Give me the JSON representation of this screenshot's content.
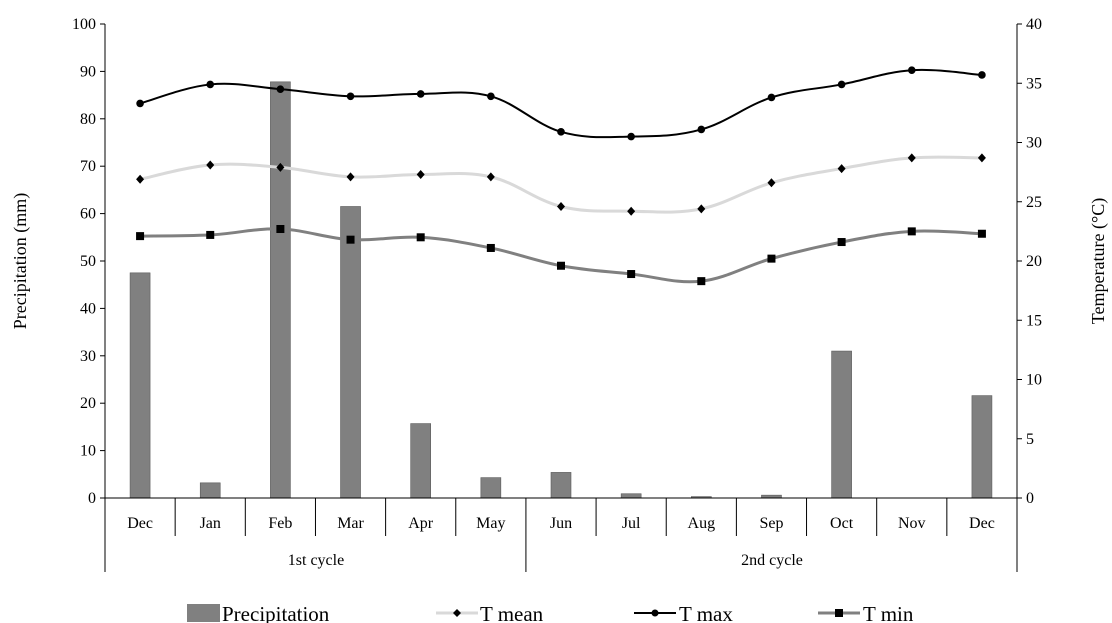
{
  "chart_data": {
    "type": "bar",
    "categories": [
      "Dec",
      "Jan",
      "Feb",
      "Mar",
      "Apr",
      "May",
      "Jun",
      "Jul",
      "Aug",
      "Sep",
      "Oct",
      "Nov",
      "Dec"
    ],
    "groups": [
      {
        "label": "1st cycle",
        "from": 0,
        "to": 5
      },
      {
        "label": "2nd cycle",
        "from": 6,
        "to": 12
      }
    ],
    "y_left": {
      "label": "Precipitation (mm)",
      "lim": [
        0,
        100
      ],
      "ticks": [
        0,
        10,
        20,
        30,
        40,
        50,
        60,
        70,
        80,
        90,
        100
      ]
    },
    "y_right": {
      "label": "Temperature (°C)",
      "lim": [
        0,
        40
      ],
      "ticks": [
        0,
        5,
        10,
        15,
        20,
        25,
        30,
        35,
        40
      ]
    },
    "series": [
      {
        "name": "Precipitation",
        "kind": "bar",
        "axis": "left",
        "color": "#808080",
        "values": [
          47.5,
          3.2,
          87.8,
          61.5,
          15.7,
          4.3,
          5.4,
          0.9,
          0.3,
          0.6,
          31.0,
          0.0,
          21.6
        ]
      },
      {
        "name": "T mean",
        "kind": "line",
        "axis": "right",
        "color": "#d9d9d9",
        "marker": "diamond",
        "values": [
          26.9,
          28.1,
          27.9,
          27.1,
          27.3,
          27.1,
          24.6,
          24.2,
          24.4,
          26.6,
          27.8,
          28.7,
          28.7
        ]
      },
      {
        "name": "T max",
        "kind": "line",
        "axis": "right",
        "color": "#000000",
        "marker": "circle",
        "values": [
          33.3,
          34.9,
          34.5,
          33.9,
          34.1,
          33.9,
          30.9,
          30.5,
          31.1,
          33.8,
          34.9,
          36.1,
          35.7
        ]
      },
      {
        "name": "T min",
        "kind": "line",
        "axis": "right",
        "color": "#808080",
        "marker": "square",
        "values": [
          22.1,
          22.2,
          22.7,
          21.8,
          22.0,
          21.1,
          19.6,
          18.9,
          18.3,
          20.2,
          21.6,
          22.5,
          22.3
        ]
      }
    ],
    "legend_position": "bottom",
    "grid": false
  }
}
